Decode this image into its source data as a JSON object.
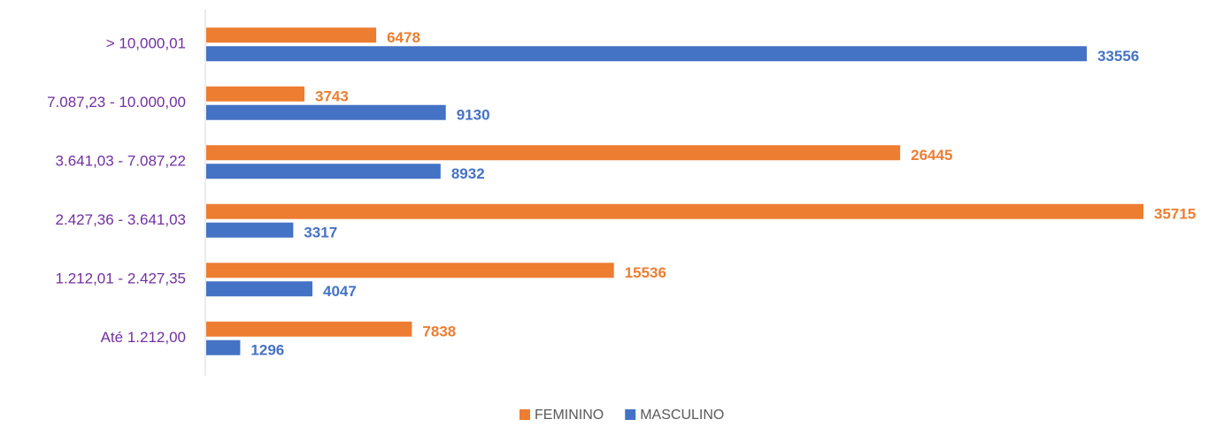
{
  "chart_data": {
    "type": "bar",
    "orientation": "horizontal",
    "categories": [
      "> 10,000,01",
      "7.087,23 - 10.000,00",
      "3.641,03 - 7.087,22",
      "2.427,36 - 3.641,03",
      "1.212,01 - 2.427,35",
      "Até 1.212,00"
    ],
    "series": [
      {
        "name": "FEMININO",
        "color": "#ed7d31",
        "values": [
          6478,
          3743,
          26445,
          35715,
          15536,
          7838
        ]
      },
      {
        "name": "MASCULINO",
        "color": "#4472c4",
        "values": [
          33556,
          9130,
          8932,
          3317,
          4047,
          1296
        ]
      }
    ]
  }
}
